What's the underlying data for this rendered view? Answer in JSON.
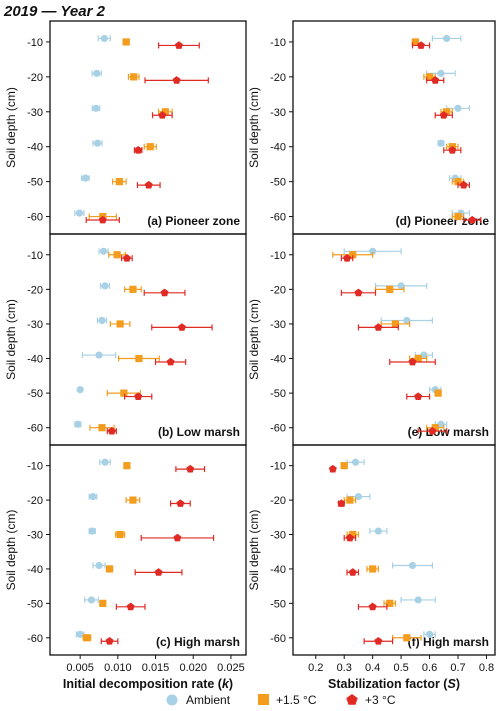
{
  "title": "2019 — Year 2",
  "y_label": "Soil depth (cm)",
  "legend": [
    {
      "name": "Ambient",
      "marker": "circle",
      "color": "#a9d1e6"
    },
    {
      "name": "+1.5 °C",
      "marker": "square",
      "color": "#f39c1e"
    },
    {
      "name": "+3 °C",
      "marker": "pentagon",
      "color": "#e02a24"
    }
  ],
  "chart_data": [
    {
      "type": "scatter",
      "panel": "(a) Pioneer zone",
      "column": "left",
      "xlabel": "Initial decomposition rate (k)",
      "xlim": [
        0.001,
        0.027
      ],
      "xticks": [
        0.005,
        0.01,
        0.015,
        0.02,
        0.025
      ],
      "ylabel": "Soil depth (cm)",
      "ylim": [
        -65,
        -4
      ],
      "yticks": [
        -10,
        -20,
        -30,
        -40,
        -50,
        -60
      ],
      "series": [
        {
          "name": "Ambient",
          "points": [
            {
              "x": 0.0082,
              "y": -9,
              "err": 0.0008
            },
            {
              "x": 0.0072,
              "y": -19,
              "err": 0.0006
            },
            {
              "x": 0.0071,
              "y": -29,
              "err": 0.0005
            },
            {
              "x": 0.0073,
              "y": -39,
              "err": 0.0006
            },
            {
              "x": 0.0057,
              "y": -49,
              "err": 0.0005
            },
            {
              "x": 0.0049,
              "y": -59,
              "err": 0.0006
            }
          ]
        },
        {
          "name": "+1.5 °C",
          "points": [
            {
              "x": 0.0111,
              "y": -10,
              "err": 0.0004
            },
            {
              "x": 0.0121,
              "y": -20,
              "err": 0.0007
            },
            {
              "x": 0.0163,
              "y": -30,
              "err": 0.0009
            },
            {
              "x": 0.0143,
              "y": -40,
              "err": 0.0008
            },
            {
              "x": 0.0102,
              "y": -50,
              "err": 0.0009
            },
            {
              "x": 0.008,
              "y": -60,
              "err": 0.0018
            }
          ]
        },
        {
          "name": "+3 °C",
          "points": [
            {
              "x": 0.0181,
              "y": -11,
              "err": 0.0027
            },
            {
              "x": 0.0178,
              "y": -21,
              "err": 0.0042
            },
            {
              "x": 0.0159,
              "y": -31,
              "err": 0.0013
            },
            {
              "x": 0.0127,
              "y": -41,
              "err": 0.0005
            },
            {
              "x": 0.0141,
              "y": -51,
              "err": 0.0015
            },
            {
              "x": 0.008,
              "y": -61,
              "err": 0.0022
            }
          ]
        }
      ]
    },
    {
      "type": "scatter",
      "panel": "(d) Pioneer zone",
      "column": "right",
      "xlabel": "Stabilization factor (S)",
      "xlim": [
        0.12,
        0.83
      ],
      "xticks": [
        0.2,
        0.3,
        0.4,
        0.5,
        0.6,
        0.7,
        0.8
      ],
      "ylabel": "Soil depth (cm)",
      "ylim": [
        -65,
        -4
      ],
      "yticks": [
        -10,
        -20,
        -30,
        -40,
        -50,
        -60
      ],
      "series": [
        {
          "name": "Ambient",
          "points": [
            {
              "x": 0.66,
              "y": -9,
              "err": 0.05
            },
            {
              "x": 0.64,
              "y": -19,
              "err": 0.05
            },
            {
              "x": 0.7,
              "y": -29,
              "err": 0.04
            },
            {
              "x": 0.64,
              "y": -39,
              "err": 0.01
            },
            {
              "x": 0.69,
              "y": -49,
              "err": 0.02
            },
            {
              "x": 0.71,
              "y": -59,
              "err": 0.03
            }
          ]
        },
        {
          "name": "+1.5 °C",
          "points": [
            {
              "x": 0.55,
              "y": -10,
              "err": 0.01
            },
            {
              "x": 0.6,
              "y": -20,
              "err": 0.02
            },
            {
              "x": 0.66,
              "y": -30,
              "err": 0.02
            },
            {
              "x": 0.68,
              "y": -40,
              "err": 0.02
            },
            {
              "x": 0.7,
              "y": -50,
              "err": 0.02
            },
            {
              "x": 0.7,
              "y": -60,
              "err": 0.02
            }
          ]
        },
        {
          "name": "+3 °C",
          "points": [
            {
              "x": 0.57,
              "y": -11,
              "err": 0.03
            },
            {
              "x": 0.62,
              "y": -21,
              "err": 0.03
            },
            {
              "x": 0.65,
              "y": -31,
              "err": 0.03
            },
            {
              "x": 0.68,
              "y": -41,
              "err": 0.03
            },
            {
              "x": 0.72,
              "y": -51,
              "err": 0.02
            },
            {
              "x": 0.75,
              "y": -61,
              "err": 0.03
            }
          ]
        }
      ]
    },
    {
      "type": "scatter",
      "panel": "(b) Low marsh",
      "column": "left",
      "xlabel": "Initial decomposition rate (k)",
      "xlim": [
        0.001,
        0.027
      ],
      "xticks": [
        0.005,
        0.01,
        0.015,
        0.02,
        0.025
      ],
      "ylabel": "Soil depth (cm)",
      "ylim": [
        -65,
        -4
      ],
      "yticks": [
        -10,
        -20,
        -30,
        -40,
        -50,
        -60
      ],
      "series": [
        {
          "name": "Ambient",
          "points": [
            {
              "x": 0.0081,
              "y": -9,
              "err": 0.0006
            },
            {
              "x": 0.0083,
              "y": -19,
              "err": 0.0006
            },
            {
              "x": 0.0079,
              "y": -29,
              "err": 0.0006
            },
            {
              "x": 0.0075,
              "y": -39,
              "err": 0.0022
            },
            {
              "x": 0.005,
              "y": -49,
              "err": 0.0002
            },
            {
              "x": 0.0047,
              "y": -59,
              "err": 0.0004
            }
          ]
        },
        {
          "name": "+1.5 °C",
          "points": [
            {
              "x": 0.0099,
              "y": -10,
              "err": 0.0011
            },
            {
              "x": 0.012,
              "y": -20,
              "err": 0.0011
            },
            {
              "x": 0.0103,
              "y": -30,
              "err": 0.0013
            },
            {
              "x": 0.0128,
              "y": -40,
              "err": 0.0027
            },
            {
              "x": 0.0108,
              "y": -50,
              "err": 0.0022
            },
            {
              "x": 0.0079,
              "y": -60,
              "err": 0.0016
            }
          ]
        },
        {
          "name": "+3 °C",
          "points": [
            {
              "x": 0.0112,
              "y": -11,
              "err": 0.0007
            },
            {
              "x": 0.0162,
              "y": -21,
              "err": 0.0027
            },
            {
              "x": 0.0185,
              "y": -31,
              "err": 0.004
            },
            {
              "x": 0.017,
              "y": -41,
              "err": 0.002
            },
            {
              "x": 0.0127,
              "y": -51,
              "err": 0.0018
            },
            {
              "x": 0.0092,
              "y": -61,
              "err": 0.0006
            }
          ]
        }
      ]
    },
    {
      "type": "scatter",
      "panel": "(e) Low marsh",
      "column": "right",
      "xlabel": "Stabilization factor (S)",
      "xlim": [
        0.12,
        0.83
      ],
      "xticks": [
        0.2,
        0.3,
        0.4,
        0.5,
        0.6,
        0.7,
        0.8
      ],
      "ylabel": "Soil depth (cm)",
      "ylim": [
        -65,
        -4
      ],
      "yticks": [
        -10,
        -20,
        -30,
        -40,
        -50,
        -60
      ],
      "series": [
        {
          "name": "Ambient",
          "points": [
            {
              "x": 0.4,
              "y": -9,
              "err": 0.1
            },
            {
              "x": 0.5,
              "y": -19,
              "err": 0.09
            },
            {
              "x": 0.52,
              "y": -29,
              "err": 0.09
            },
            {
              "x": 0.58,
              "y": -39,
              "err": 0.03
            },
            {
              "x": 0.62,
              "y": -49,
              "err": 0.02
            },
            {
              "x": 0.64,
              "y": -59,
              "err": 0.02
            }
          ]
        },
        {
          "name": "+1.5 °C",
          "points": [
            {
              "x": 0.33,
              "y": -10,
              "err": 0.07
            },
            {
              "x": 0.46,
              "y": -20,
              "err": 0.05
            },
            {
              "x": 0.48,
              "y": -30,
              "err": 0.05
            },
            {
              "x": 0.56,
              "y": -40,
              "err": 0.03
            },
            {
              "x": 0.63,
              "y": -50,
              "err": 0.01
            },
            {
              "x": 0.62,
              "y": -60,
              "err": 0.03
            }
          ]
        },
        {
          "name": "+3 °C",
          "points": [
            {
              "x": 0.31,
              "y": -11,
              "err": 0.02
            },
            {
              "x": 0.35,
              "y": -21,
              "err": 0.06
            },
            {
              "x": 0.42,
              "y": -31,
              "err": 0.07
            },
            {
              "x": 0.54,
              "y": -41,
              "err": 0.08
            },
            {
              "x": 0.56,
              "y": -51,
              "err": 0.04
            },
            {
              "x": 0.61,
              "y": -61,
              "err": 0.05
            }
          ]
        }
      ]
    },
    {
      "type": "scatter",
      "panel": "(c) High marsh",
      "column": "left",
      "xlabel": "Initial decomposition rate (k)",
      "xlim": [
        0.001,
        0.027
      ],
      "xticks": [
        0.005,
        0.01,
        0.015,
        0.02,
        0.025
      ],
      "ylabel": "Soil depth (cm)",
      "ylim": [
        -65,
        -4
      ],
      "yticks": [
        -10,
        -20,
        -30,
        -40,
        -50,
        -60
      ],
      "series": [
        {
          "name": "Ambient",
          "points": [
            {
              "x": 0.0083,
              "y": -9,
              "err": 0.0007
            },
            {
              "x": 0.0067,
              "y": -19,
              "err": 0.0005
            },
            {
              "x": 0.0066,
              "y": -29,
              "err": 0.0004
            },
            {
              "x": 0.0075,
              "y": -39,
              "err": 0.0008
            },
            {
              "x": 0.0065,
              "y": -49,
              "err": 0.0009
            },
            {
              "x": 0.005,
              "y": -59,
              "err": 0.0005
            }
          ]
        },
        {
          "name": "+1.5 °C",
          "points": [
            {
              "x": 0.0112,
              "y": -10,
              "err": 0.0003
            },
            {
              "x": 0.012,
              "y": -20,
              "err": 0.0009
            },
            {
              "x": 0.0103,
              "y": -30,
              "err": 0.0006
            },
            {
              "x": 0.0089,
              "y": -40,
              "err": 0.0004
            },
            {
              "x": 0.008,
              "y": -50,
              "err": 0.0002
            },
            {
              "x": 0.0059,
              "y": -60,
              "err": 0.0005
            }
          ]
        },
        {
          "name": "+3 °C",
          "points": [
            {
              "x": 0.0196,
              "y": -11,
              "err": 0.0019
            },
            {
              "x": 0.0183,
              "y": -21,
              "err": 0.0013
            },
            {
              "x": 0.0179,
              "y": -31,
              "err": 0.0048
            },
            {
              "x": 0.0154,
              "y": -41,
              "err": 0.0031
            },
            {
              "x": 0.0117,
              "y": -51,
              "err": 0.0019
            },
            {
              "x": 0.0089,
              "y": -61,
              "err": 0.0011
            }
          ]
        }
      ]
    },
    {
      "type": "scatter",
      "panel": "(f) High marsh",
      "column": "right",
      "xlabel": "Stabilization factor (S)",
      "xlim": [
        0.12,
        0.83
      ],
      "xticks": [
        0.2,
        0.3,
        0.4,
        0.5,
        0.6,
        0.7,
        0.8
      ],
      "ylabel": "Soil depth (cm)",
      "ylim": [
        -65,
        -4
      ],
      "yticks": [
        -10,
        -20,
        -30,
        -40,
        -50,
        -60
      ],
      "series": [
        {
          "name": "Ambient",
          "points": [
            {
              "x": 0.34,
              "y": -9,
              "err": 0.03
            },
            {
              "x": 0.35,
              "y": -19,
              "err": 0.04
            },
            {
              "x": 0.42,
              "y": -29,
              "err": 0.03
            },
            {
              "x": 0.54,
              "y": -39,
              "err": 0.07
            },
            {
              "x": 0.56,
              "y": -49,
              "err": 0.06
            },
            {
              "x": 0.6,
              "y": -59,
              "err": 0.02
            }
          ]
        },
        {
          "name": "+1.5 °C",
          "points": [
            {
              "x": 0.3,
              "y": -10,
              "err": 0.01
            },
            {
              "x": 0.32,
              "y": -20,
              "err": 0.02
            },
            {
              "x": 0.33,
              "y": -30,
              "err": 0.02
            },
            {
              "x": 0.4,
              "y": -40,
              "err": 0.02
            },
            {
              "x": 0.46,
              "y": -50,
              "err": 0.02
            },
            {
              "x": 0.52,
              "y": -60,
              "err": 0.05
            }
          ]
        },
        {
          "name": "+3 °C",
          "points": [
            {
              "x": 0.26,
              "y": -11,
              "err": 0.0
            },
            {
              "x": 0.29,
              "y": -21,
              "err": 0.01
            },
            {
              "x": 0.32,
              "y": -31,
              "err": 0.02
            },
            {
              "x": 0.33,
              "y": -41,
              "err": 0.02
            },
            {
              "x": 0.4,
              "y": -51,
              "err": 0.05
            },
            {
              "x": 0.42,
              "y": -61,
              "err": 0.05
            }
          ]
        }
      ]
    }
  ]
}
